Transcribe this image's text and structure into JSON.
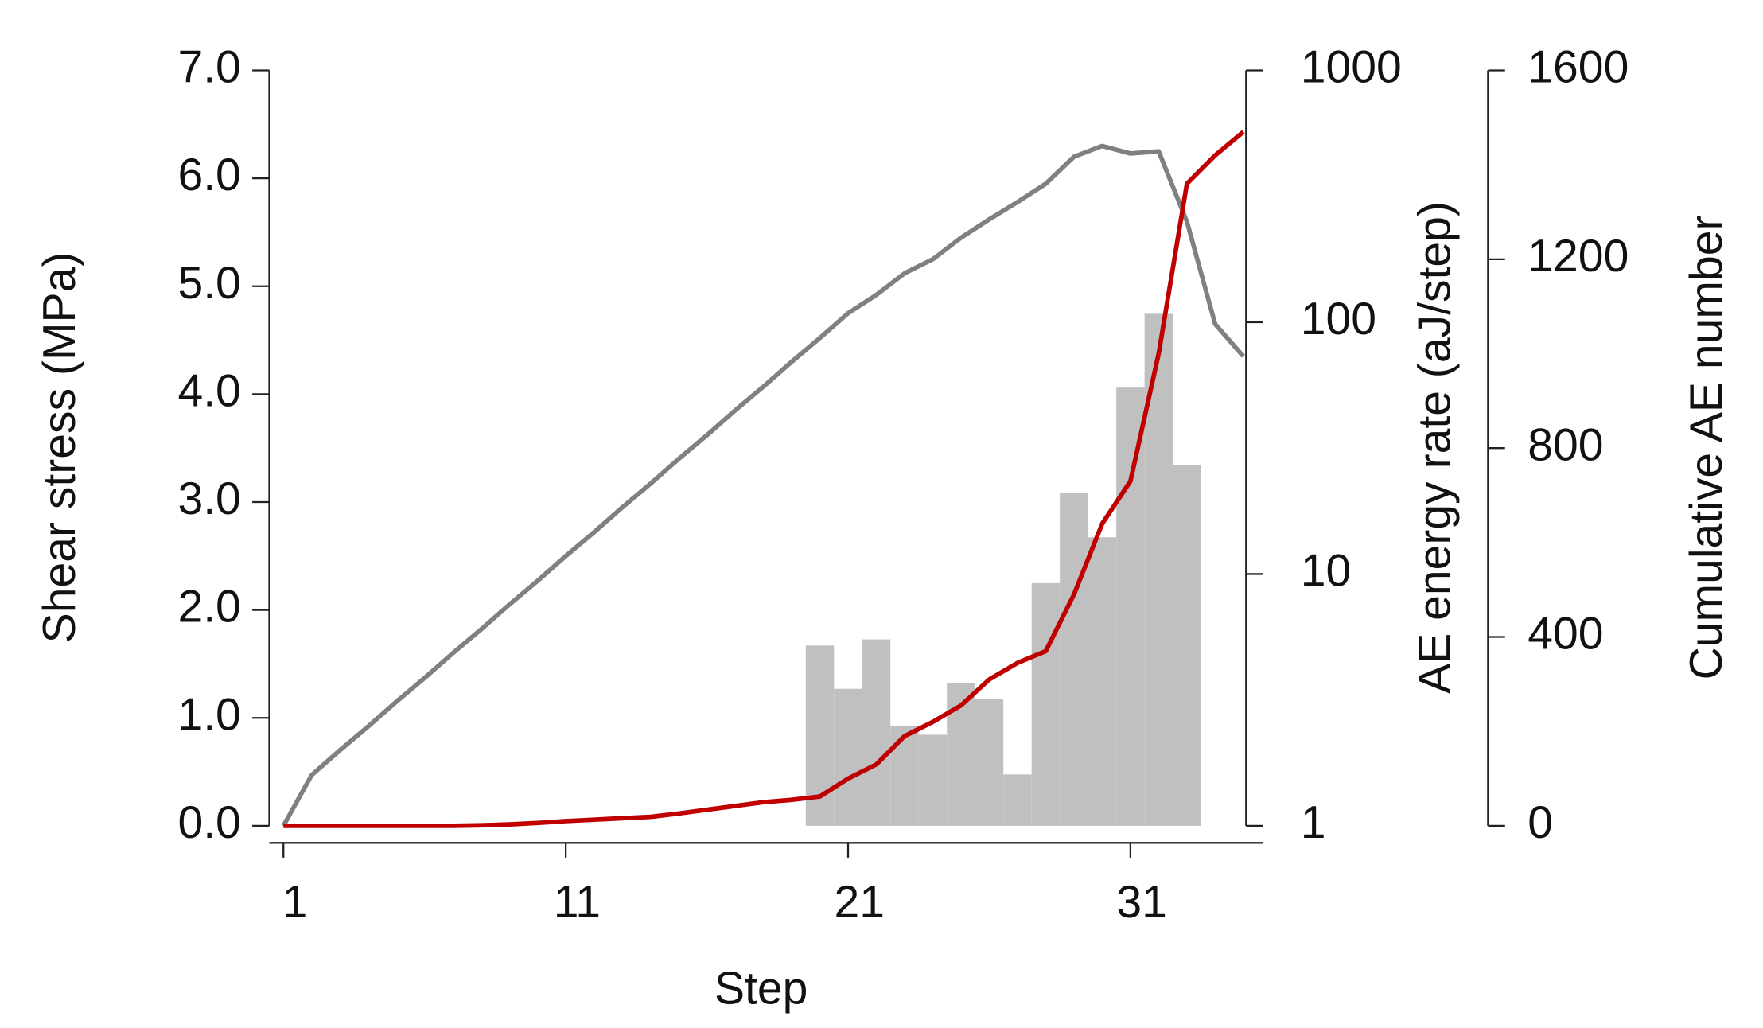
{
  "chart_data": {
    "type": "combo",
    "xlabel": "Step",
    "ylabel": "Shear stress (MPa)",
    "y2label": "AE energy rate (aJ/step)",
    "y3label": "Cumulative AE number",
    "xlim": [
      0.5,
      35.7
    ],
    "xticks": [
      1,
      11,
      21,
      31
    ],
    "ylim": [
      0,
      7
    ],
    "yticks": [
      {
        "value": 0,
        "label": "0.0"
      },
      {
        "value": 1,
        "label": "1.0"
      },
      {
        "value": 2,
        "label": "2.0"
      },
      {
        "value": 3,
        "label": "3.0"
      },
      {
        "value": 4,
        "label": "4.0"
      },
      {
        "value": 5,
        "label": "5.0"
      },
      {
        "value": 6,
        "label": "6.0"
      },
      {
        "value": 7,
        "label": "7.0"
      }
    ],
    "y2lim": [
      1,
      1000
    ],
    "y2ticks": [
      1,
      10,
      100,
      1000
    ],
    "y2log": true,
    "y3lim": [
      0,
      1600
    ],
    "y3ticks": [
      0,
      400,
      800,
      1200,
      1600
    ],
    "series": [
      {
        "type": "bar",
        "axis": "y2",
        "color": "#c0c0c0",
        "x": [
          20,
          21,
          22,
          23,
          24,
          25,
          26,
          27,
          28,
          29,
          30,
          31,
          32,
          33
        ],
        "values": [
          5.2,
          3.5,
          5.5,
          2.5,
          2.3,
          3.7,
          3.2,
          1.6,
          9.2,
          21,
          14,
          55,
          108,
          27
        ]
      },
      {
        "type": "line",
        "axis": "y",
        "color": "#808080",
        "x": [
          1,
          2,
          3,
          4,
          5,
          6,
          7,
          8,
          9,
          10,
          11,
          12,
          13,
          14,
          15,
          16,
          17,
          18,
          19,
          20,
          21,
          22,
          23,
          24,
          25,
          26,
          27,
          28,
          29,
          30,
          31,
          32,
          33,
          34,
          35
        ],
        "values": [
          0,
          0.47,
          0.7,
          0.92,
          1.15,
          1.37,
          1.6,
          1.82,
          2.05,
          2.27,
          2.5,
          2.72,
          2.95,
          3.17,
          3.4,
          3.62,
          3.85,
          4.07,
          4.3,
          4.52,
          4.75,
          4.92,
          5.12,
          5.25,
          5.45,
          5.62,
          5.78,
          5.95,
          6.2,
          6.3,
          6.23,
          6.25,
          5.6,
          4.65,
          4.35
        ]
      },
      {
        "type": "line",
        "axis": "y3",
        "color": "#c00000",
        "x": [
          1,
          2,
          3,
          4,
          5,
          6,
          7,
          8,
          9,
          10,
          11,
          12,
          13,
          14,
          15,
          16,
          17,
          18,
          19,
          20,
          21,
          22,
          23,
          24,
          25,
          26,
          27,
          28,
          29,
          30,
          31,
          32,
          33,
          34,
          35
        ],
        "values": [
          0,
          0,
          0,
          0,
          0,
          0,
          0,
          1,
          3,
          6,
          10,
          13,
          16,
          19,
          26,
          34,
          42,
          50,
          55,
          62,
          100,
          130,
          190,
          220,
          255,
          310,
          345,
          370,
          490,
          640,
          730,
          1000,
          1360,
          1420,
          1470
        ]
      }
    ]
  }
}
